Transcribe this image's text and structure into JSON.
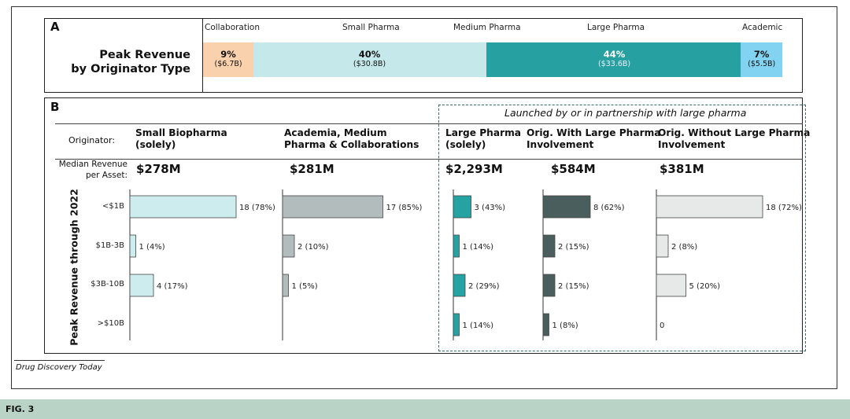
{
  "journal": "Drug Discovery Today",
  "figure_label": "FIG. 3",
  "chart_data": [
    {
      "type": "bar",
      "orientation": "stacked-horizontal",
      "panel": "A",
      "title": "Peak Revenue by Originator Type",
      "title_lines": [
        "Peak Revenue",
        "by Originator Type"
      ],
      "categories": [
        "Collaboration",
        "Small Pharma",
        "Medium Pharma",
        "Large Pharma",
        "Academic"
      ],
      "segments": [
        {
          "name": "Collaboration",
          "pct": "9%",
          "amount": "($6.7B)"
        },
        {
          "name": "Small Pharma",
          "pct": "40%",
          "amount": "($30.8B)"
        },
        {
          "name": "Medium Pharma",
          "pct": "",
          "amount": ""
        },
        {
          "name": "Large Pharma",
          "pct": "44%",
          "amount": "($33.6B)"
        },
        {
          "name": "Academic",
          "pct": "7%",
          "amount": "($5.5B)"
        }
      ],
      "values_billion": [
        6.7,
        30.8,
        0.3,
        33.6,
        5.5
      ],
      "colors": [
        "#f9d1ad",
        "#c5e9ea",
        "#26a0a0",
        "#26a0a0",
        "#82d3f1"
      ]
    },
    {
      "type": "bar",
      "orientation": "horizontal",
      "panel": "B",
      "ylabel": "Peak Revenue through 2022",
      "originator_label": "Originator:",
      "median_label": [
        "Median Revenue",
        "per Asset:"
      ],
      "bracket_label": "Launched by or in partnership with large pharma",
      "categories": [
        "<$1B",
        "$1B-3B",
        "$3B-10B",
        ">$10B"
      ],
      "series": [
        {
          "name": "Small Biopharma (solely)",
          "name_lines": [
            "Small Biopharma",
            "(solely)"
          ],
          "median": "$278M",
          "values": [
            18,
            1,
            4,
            null
          ],
          "pct": [
            "78%",
            "4%",
            "17%",
            ""
          ],
          "color": "#ccecee"
        },
        {
          "name": "Academia, Medium Pharma & Collaborations",
          "name_lines": [
            "Academia, Medium",
            "Pharma & Collaborations"
          ],
          "median": "$281M",
          "values": [
            17,
            2,
            1,
            null
          ],
          "pct": [
            "85%",
            "10%",
            "5%",
            ""
          ],
          "color": "#b3bcbc"
        },
        {
          "name": "Large Pharma (solely)",
          "name_lines": [
            "Large Pharma",
            "(solely)"
          ],
          "median": "$2,293M",
          "values": [
            3,
            1,
            2,
            1
          ],
          "pct": [
            "43%",
            "14%",
            "29%",
            "14%"
          ],
          "color": "#25a3a3"
        },
        {
          "name": "Orig. With Large Pharma Involvement",
          "name_lines": [
            "Orig. With Large Pharma",
            "Involvement"
          ],
          "median": "$584M",
          "values": [
            8,
            2,
            2,
            1
          ],
          "pct": [
            "62%",
            "15%",
            "15%",
            "8%"
          ],
          "color": "#4b5e5e"
        },
        {
          "name": "Orig. Without Large Pharma Involvement",
          "name_lines": [
            "Orig. Without Large Pharma",
            "Involvement"
          ],
          "median": "$381M",
          "values": [
            18,
            2,
            5,
            0
          ],
          "pct": [
            "72%",
            "8%",
            "20%",
            ""
          ],
          "color": "#e6e9e8"
        }
      ]
    }
  ]
}
